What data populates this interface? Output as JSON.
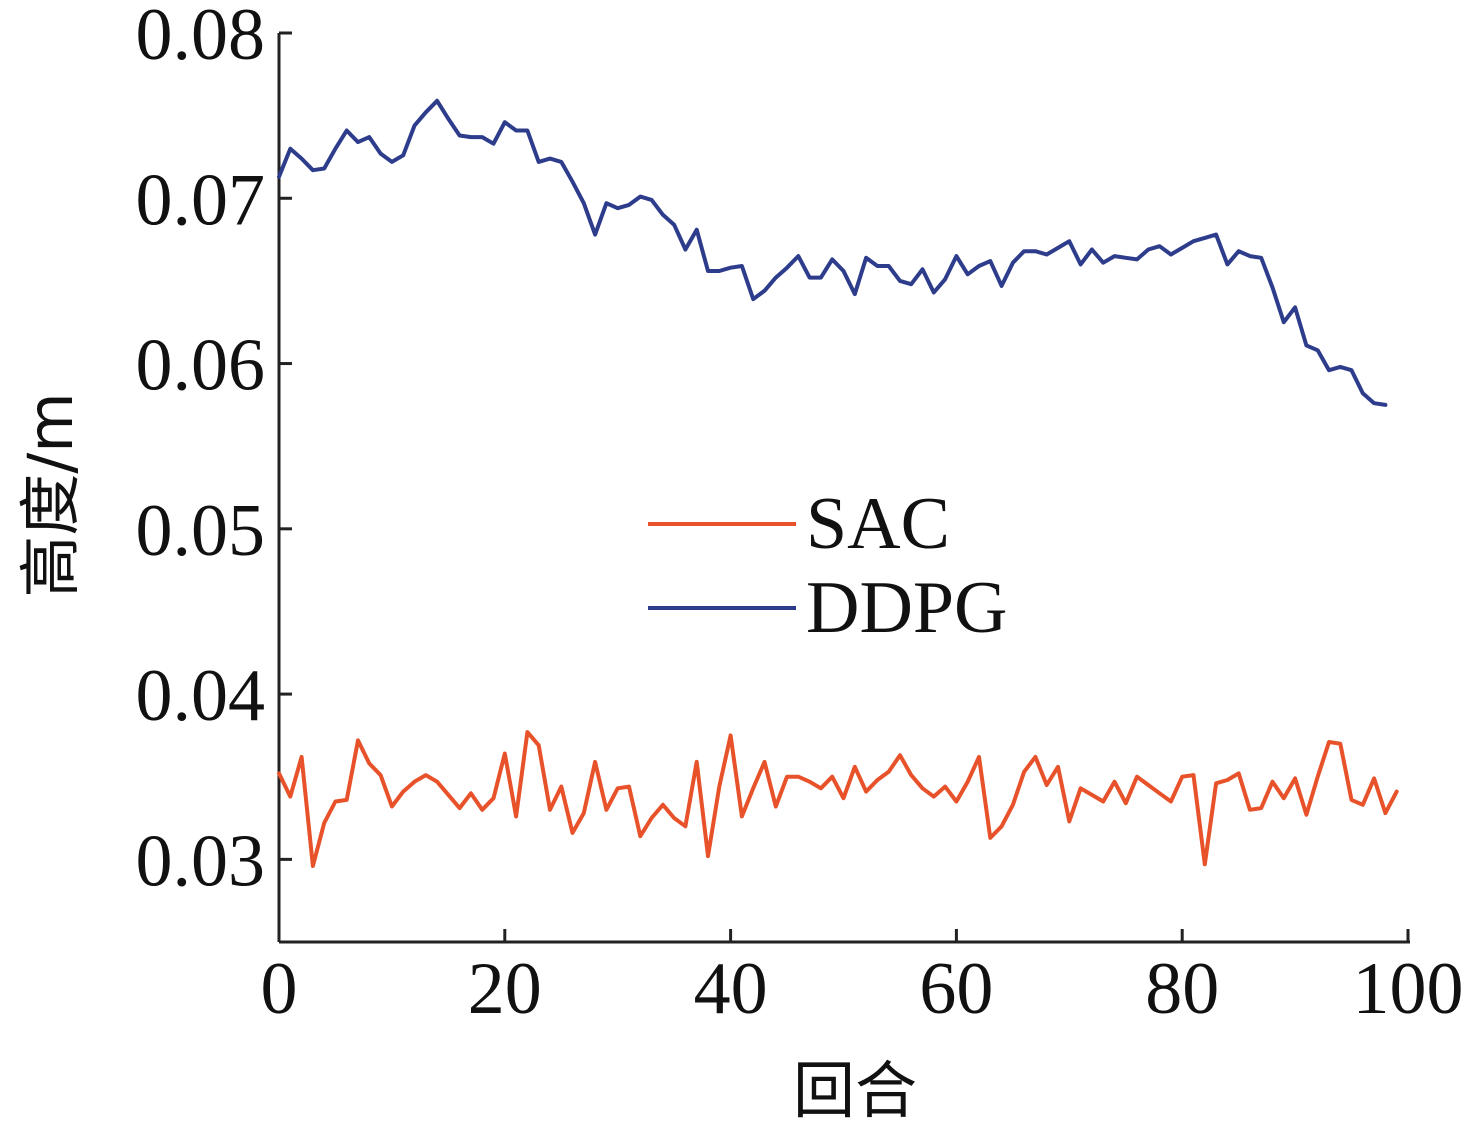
{
  "chart_data": {
    "type": "line",
    "xlabel": "回合",
    "ylabel": "高度/m",
    "xlim": [
      0,
      100
    ],
    "ylim": [
      0.025,
      0.08
    ],
    "x_ticks": [
      "0",
      "20",
      "40",
      "60",
      "80",
      "100"
    ],
    "y_ticks": [
      "0.03",
      "0.04",
      "0.05",
      "0.06",
      "0.07",
      "0.08"
    ],
    "grid": false,
    "legend_position": "center",
    "series": [
      {
        "name": "SAC",
        "color": "#e8522a",
        "x": [
          0,
          1,
          2,
          3,
          4,
          5,
          6,
          7,
          8,
          9,
          10,
          11,
          12,
          13,
          14,
          15,
          16,
          17,
          18,
          19,
          20,
          21,
          22,
          23,
          24,
          25,
          26,
          27,
          28,
          29,
          30,
          31,
          32,
          33,
          34,
          35,
          36,
          37,
          38,
          39,
          40,
          41,
          42,
          43,
          44,
          45,
          46,
          47,
          48,
          49,
          50,
          51,
          52,
          53,
          54,
          55,
          56,
          57,
          58,
          59,
          60,
          61,
          62,
          63,
          64,
          65,
          66,
          67,
          68,
          69,
          70,
          71,
          72,
          73,
          74,
          75,
          76,
          77,
          78,
          79,
          80,
          81,
          82,
          83,
          84,
          85,
          86,
          87,
          88,
          89,
          90,
          91,
          92,
          93,
          94,
          95,
          96,
          97,
          98,
          99
        ],
        "y": [
          0.0352,
          0.0338,
          0.0362,
          0.0296,
          0.0322,
          0.0335,
          0.0336,
          0.0372,
          0.0358,
          0.0351,
          0.0332,
          0.0341,
          0.0347,
          0.0351,
          0.0347,
          0.0339,
          0.0331,
          0.034,
          0.033,
          0.0337,
          0.0364,
          0.0326,
          0.0377,
          0.0369,
          0.033,
          0.0344,
          0.0316,
          0.0328,
          0.0359,
          0.033,
          0.0343,
          0.0344,
          0.0314,
          0.0325,
          0.0333,
          0.0325,
          0.032,
          0.0359,
          0.0302,
          0.0344,
          0.0375,
          0.0326,
          0.0343,
          0.0359,
          0.0332,
          0.035,
          0.035,
          0.0347,
          0.0343,
          0.035,
          0.0337,
          0.0356,
          0.0341,
          0.0348,
          0.0353,
          0.0363,
          0.0351,
          0.0343,
          0.0338,
          0.0344,
          0.0335,
          0.0347,
          0.0362,
          0.0313,
          0.032,
          0.0333,
          0.0353,
          0.0362,
          0.0345,
          0.0356,
          0.0323,
          0.0343,
          0.0339,
          0.0335,
          0.0347,
          0.0334,
          0.035,
          0.0345,
          0.034,
          0.0335,
          0.035,
          0.0351,
          0.0297,
          0.0346,
          0.0348,
          0.0352,
          0.033,
          0.0331,
          0.0347,
          0.0337,
          0.0349,
          0.0327,
          0.035,
          0.0371,
          0.037,
          0.0336,
          0.0333,
          0.0349,
          0.0328,
          0.0341
        ]
      },
      {
        "name": "DDPG",
        "color": "#2e3c8c",
        "x": [
          0,
          1,
          2,
          3,
          4,
          5,
          6,
          7,
          8,
          9,
          10,
          11,
          12,
          13,
          14,
          15,
          16,
          17,
          18,
          19,
          20,
          21,
          22,
          23,
          24,
          25,
          26,
          27,
          28,
          29,
          30,
          31,
          32,
          33,
          34,
          35,
          36,
          37,
          38,
          39,
          40,
          41,
          42,
          43,
          44,
          45,
          46,
          47,
          48,
          49,
          50,
          51,
          52,
          53,
          54,
          55,
          56,
          57,
          58,
          59,
          60,
          61,
          62,
          63,
          64,
          65,
          66,
          67,
          68,
          69,
          70,
          71,
          72,
          73,
          74,
          75,
          76,
          77,
          78,
          79,
          80,
          81,
          82,
          83,
          84,
          85,
          86,
          87,
          88,
          89,
          90,
          91,
          92,
          93,
          94,
          95,
          96,
          97,
          98
        ],
        "y": [
          0.0713,
          0.073,
          0.0724,
          0.0717,
          0.0718,
          0.073,
          0.0741,
          0.0734,
          0.0737,
          0.0727,
          0.0722,
          0.0726,
          0.0744,
          0.0752,
          0.0759,
          0.0748,
          0.0738,
          0.0737,
          0.0737,
          0.0733,
          0.0746,
          0.0741,
          0.0741,
          0.0722,
          0.0724,
          0.0722,
          0.071,
          0.0697,
          0.0678,
          0.0697,
          0.0694,
          0.0696,
          0.0701,
          0.0699,
          0.069,
          0.0684,
          0.0669,
          0.0681,
          0.0656,
          0.0656,
          0.0658,
          0.0659,
          0.0639,
          0.0644,
          0.0652,
          0.0658,
          0.0665,
          0.0652,
          0.0652,
          0.0663,
          0.0656,
          0.0642,
          0.0664,
          0.0659,
          0.0659,
          0.065,
          0.0648,
          0.0657,
          0.0643,
          0.0651,
          0.0665,
          0.0654,
          0.0659,
          0.0662,
          0.0647,
          0.0661,
          0.0668,
          0.0668,
          0.0666,
          0.067,
          0.0674,
          0.066,
          0.0669,
          0.0661,
          0.0665,
          0.0664,
          0.0663,
          0.0669,
          0.0671,
          0.0666,
          0.067,
          0.0674,
          0.0676,
          0.0678,
          0.066,
          0.0668,
          0.0665,
          0.0664,
          0.0646,
          0.0625,
          0.0634,
          0.0611,
          0.0608,
          0.0596,
          0.0598,
          0.0596,
          0.0582,
          0.0576,
          0.0575
        ]
      }
    ]
  }
}
